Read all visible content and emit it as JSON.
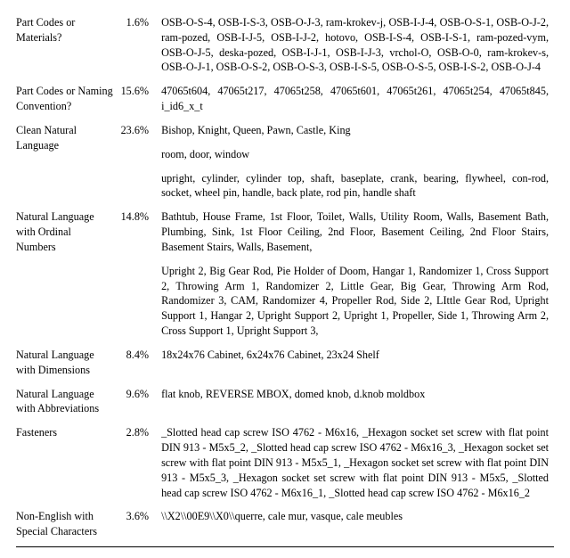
{
  "table": {
    "font_family": "serif",
    "font_size_pt": 9,
    "rule_color": "#000000",
    "column_widths_pct": [
      19,
      8,
      73
    ],
    "rows": [
      {
        "label": "Part Codes or Materials?",
        "pct": "1.6%",
        "examples": [
          "OSB-O-S-4, OSB-I-S-3, OSB-O-J-3, ram-krokev-j, OSB-I-J-4, OSB-O-S-1, OSB-O-J-2, ram-pozed, OSB-I-J-5, OSB-I-J-2, hotovo, OSB-I-S-4, OSB-I-S-1, ram-pozed-vym, OSB-O-J-5, deska-pozed, OSB-I-J-1, OSB-I-J-3, vrchol-O, OSB-O-0, ram-krokev-s, OSB-O-J-1, OSB-O-S-2, OSB-O-S-3, OSB-I-S-5, OSB-O-S-5, OSB-I-S-2, OSB-O-J-4"
        ]
      },
      {
        "label": "Part Codes or Naming Convention?",
        "pct": "15.6%",
        "examples": [
          "47065t604, 47065t217, 47065t258, 47065t601, 47065t261, 47065t254, 47065t845, i_id6_x_t"
        ]
      },
      {
        "label": "Clean Natural Language",
        "pct": "23.6%",
        "examples": [
          "Bishop, Knight, Queen, Pawn, Castle, King",
          "room, door, window",
          "upright, cylinder, cylinder top, shaft, baseplate, crank, bearing, flywheel, con-rod, socket, wheel pin, handle, back plate, rod pin, handle shaft"
        ]
      },
      {
        "label": "Natural Language with Ordinal Numbers",
        "pct": "14.8%",
        "examples": [
          "Bathtub, House Frame, 1st Floor, Toilet, Walls, Utility Room, Walls, Basement Bath, Plumbing, Sink, 1st Floor Ceiling, 2nd Floor, Basement Ceiling, 2nd Floor Stairs, Basement Stairs, Walls, Basement,",
          "Upright 2, Big Gear Rod, Pie Holder of Doom, Hangar 1, Randomizer 1, Cross Support 2, Throwing Arm 1, Randomizer 2, Little Gear, Big Gear, Throwing Arm Rod, Randomizer 3, CAM, Randomizer 4, Propeller Rod, Side 2, LIttle Gear Rod, Upright Support 1, Hangar 2, Upright Support 2, Upright 1, Propeller, Side 1, Throwing Arm 2, Cross Support 1, Upright Support 3,"
        ]
      },
      {
        "label": "Natural Language with Dimensions",
        "pct": "8.4%",
        "examples": [
          "18x24x76 Cabinet, 6x24x76 Cabinet, 23x24 Shelf"
        ]
      },
      {
        "label": "Natural Language with Abbreviations",
        "pct": "9.6%",
        "examples": [
          "flat knob, REVERSE MBOX, domed knob, d.knob moldbox"
        ]
      },
      {
        "label": "Fasteners",
        "pct": "2.8%",
        "examples": [
          "_Slotted head cap screw ISO 4762 - M6x16, _Hexagon socket set screw with flat point DIN 913 - M5x5_2, _Slotted head cap screw ISO 4762 - M6x16_3, _Hexagon socket set screw with flat point DIN 913 - M5x5_1, _Hexagon socket set screw with flat point DIN 913 - M5x5_3, _Hexagon socket set screw with flat point DIN 913 - M5x5, _Slotted head cap screw ISO 4762 - M6x16_1, _Slotted head cap screw ISO 4762 - M6x16_2"
        ]
      },
      {
        "label": "Non-English with Special Characters",
        "pct": "3.6%",
        "examples": [
          "\\\\X2\\\\00E9\\\\X0\\\\querre, cale mur, vasque, cale meubles"
        ]
      }
    ]
  }
}
